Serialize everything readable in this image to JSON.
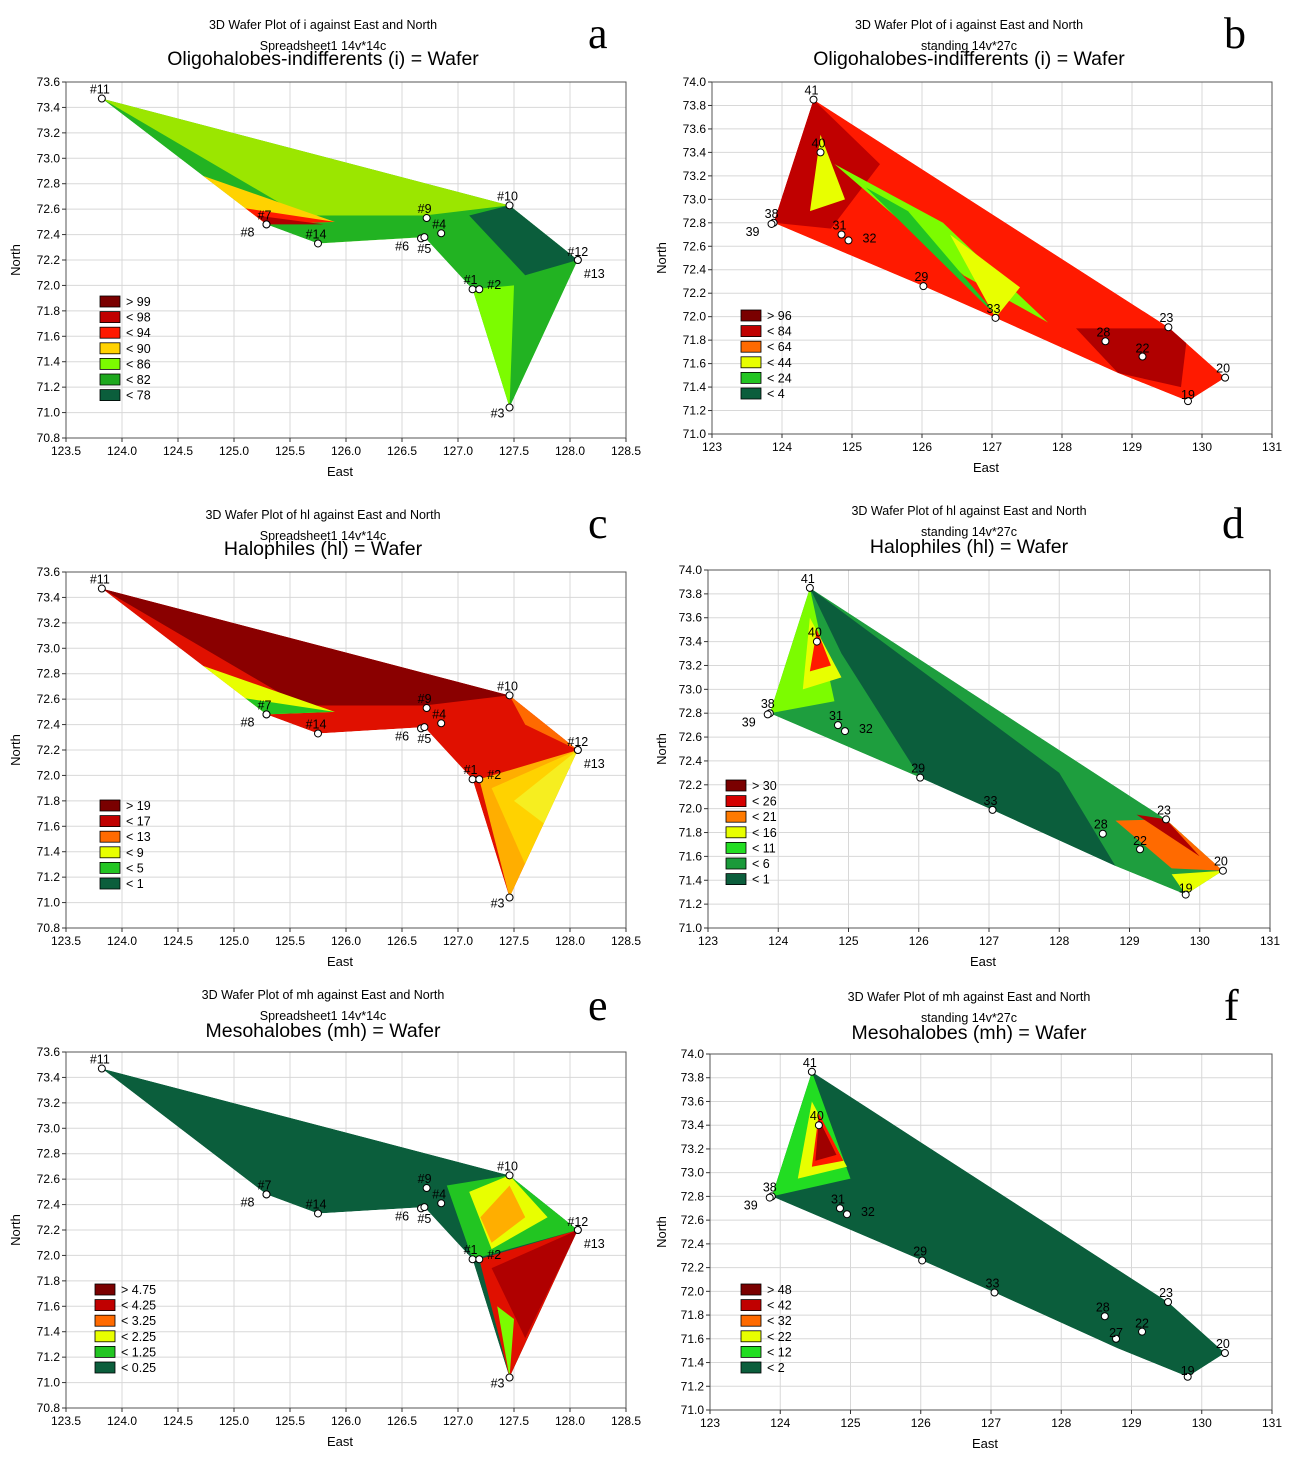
{
  "panels": [
    {
      "letter": "a",
      "sup1": "3D Wafer Plot of i against East and North",
      "sup2": "Spreadsheet1 14v*14c",
      "title": "Oligohalobes-indifferents (i) = Wafer",
      "xlabel": "East",
      "ylabel": "North",
      "xticks": [
        "123.5",
        "124.0",
        "124.5",
        "125.0",
        "125.5",
        "126.0",
        "126.5",
        "127.0",
        "127.5",
        "128.0",
        "128.5"
      ],
      "yticks": [
        "70.8",
        "71.0",
        "71.2",
        "71.4",
        "71.6",
        "71.8",
        "72.0",
        "72.2",
        "72.4",
        "72.6",
        "72.8",
        "73.0",
        "73.2",
        "73.4",
        "73.6"
      ],
      "legend": [
        ">&nbsp;99",
        "< 98",
        "< 94",
        "< 90",
        "< 86",
        "< 82",
        "< 78"
      ],
      "legend_text": [
        "> 99",
        "< 98",
        "< 94",
        "< 90",
        "< 86",
        "< 82",
        "< 78"
      ],
      "legend_colors": [
        "#7a0000",
        "#c00000",
        "#ff1a00",
        "#ffd200",
        "#7cfc00",
        "#1ea81e",
        "#0b5e3c"
      ],
      "points": [
        {
          "label": "#11",
          "x": 123.82,
          "y": 73.47
        },
        {
          "label": "#7",
          "x": 125.29,
          "y": 72.48
        },
        {
          "label": "#8",
          "x": 125.29,
          "y": 72.48
        },
        {
          "label": "#14",
          "x": 125.75,
          "y": 72.33
        },
        {
          "label": "#6",
          "x": 126.67,
          "y": 72.37
        },
        {
          "label": "#9",
          "x": 126.72,
          "y": 72.53
        },
        {
          "label": "#4",
          "x": 126.85,
          "y": 72.41
        },
        {
          "label": "#5",
          "x": 126.7,
          "y": 72.38
        },
        {
          "label": "#10",
          "x": 127.46,
          "y": 72.63
        },
        {
          "label": "#12",
          "x": 128.07,
          "y": 72.2
        },
        {
          "label": "#13",
          "x": 128.07,
          "y": 72.2
        },
        {
          "label": "#1",
          "x": 127.13,
          "y": 71.97
        },
        {
          "label": "#2",
          "x": 127.19,
          "y": 71.97
        },
        {
          "label": "#3",
          "x": 127.46,
          "y": 71.04
        }
      ]
    },
    {
      "letter": "b",
      "sup1": "3D Wafer Plot of i against East and North",
      "sup2": "standing 14v*27c",
      "title": "Oligohalobes-indifferents (i) = Wafer",
      "xlabel": "East",
      "ylabel": "North",
      "xticks": [
        "123",
        "124",
        "125",
        "126",
        "127",
        "128",
        "129",
        "130",
        "131"
      ],
      "yticks": [
        "71.0",
        "71.2",
        "71.4",
        "71.6",
        "71.8",
        "72.0",
        "72.2",
        "72.4",
        "72.6",
        "72.8",
        "73.0",
        "73.2",
        "73.4",
        "73.6",
        "73.8",
        "74.0"
      ],
      "legend_text": [
        "> 96",
        "< 84",
        "< 64",
        "< 44",
        "< 24",
        "< 4"
      ],
      "legend_colors": [
        "#7a0000",
        "#c00000",
        "#ff6a00",
        "#e8ff00",
        "#22c522",
        "#0b5e3c"
      ],
      "points": [
        {
          "label": "41",
          "x": 124.45,
          "y": 73.85
        },
        {
          "label": "40",
          "x": 124.55,
          "y": 73.4
        },
        {
          "label": "38",
          "x": 123.88,
          "y": 72.8
        },
        {
          "label": "39",
          "x": 123.85,
          "y": 72.79
        },
        {
          "label": "31",
          "x": 124.85,
          "y": 72.7
        },
        {
          "label": "32",
          "x": 124.95,
          "y": 72.65
        },
        {
          "label": "29",
          "x": 126.02,
          "y": 72.26
        },
        {
          "label": "33",
          "x": 127.05,
          "y": 71.99
        },
        {
          "label": "28",
          "x": 128.62,
          "y": 71.79
        },
        {
          "label": "22",
          "x": 129.15,
          "y": 71.66
        },
        {
          "label": "23",
          "x": 129.52,
          "y": 71.91
        },
        {
          "label": "20",
          "x": 130.33,
          "y": 71.48
        },
        {
          "label": "19",
          "x": 129.8,
          "y": 71.28
        }
      ]
    },
    {
      "letter": "c",
      "sup1": "3D Wafer Plot of hl against East and North",
      "sup2": "Spreadsheet1 14v*14c",
      "title": "Halophiles (hl) = Wafer",
      "xlabel": "East",
      "ylabel": "North",
      "xticks": [
        "123.5",
        "124.0",
        "124.5",
        "125.0",
        "125.5",
        "126.0",
        "126.5",
        "127.0",
        "127.5",
        "128.0",
        "128.5"
      ],
      "yticks": [
        "70.8",
        "71.0",
        "71.2",
        "71.4",
        "71.6",
        "71.8",
        "72.0",
        "72.2",
        "72.4",
        "72.6",
        "72.8",
        "73.0",
        "73.2",
        "73.4",
        "73.6"
      ],
      "legend_text": [
        "> 19",
        "< 17",
        "< 13",
        "< 9",
        "< 5",
        "< 1"
      ],
      "legend_colors": [
        "#7a0000",
        "#c00000",
        "#ff6a00",
        "#e8ff00",
        "#22c522",
        "#0b5e3c"
      ],
      "points": [
        {
          "label": "#11",
          "x": 123.82,
          "y": 73.47
        },
        {
          "label": "#7",
          "x": 125.29,
          "y": 72.48
        },
        {
          "label": "#8",
          "x": 125.29,
          "y": 72.48
        },
        {
          "label": "#14",
          "x": 125.75,
          "y": 72.33
        },
        {
          "label": "#6",
          "x": 126.67,
          "y": 72.37
        },
        {
          "label": "#9",
          "x": 126.72,
          "y": 72.53
        },
        {
          "label": "#4",
          "x": 126.85,
          "y": 72.41
        },
        {
          "label": "#5",
          "x": 126.7,
          "y": 72.38
        },
        {
          "label": "#10",
          "x": 127.46,
          "y": 72.63
        },
        {
          "label": "#12",
          "x": 128.07,
          "y": 72.2
        },
        {
          "label": "#13",
          "x": 128.07,
          "y": 72.2
        },
        {
          "label": "#1",
          "x": 127.13,
          "y": 71.97
        },
        {
          "label": "#2",
          "x": 127.19,
          "y": 71.97
        },
        {
          "label": "#3",
          "x": 127.46,
          "y": 71.04
        }
      ]
    },
    {
      "letter": "d",
      "sup1": "3D Wafer Plot of hl against East and North",
      "sup2": "standing 14v*27c",
      "title": "Halophiles (hl) = Wafer",
      "xlabel": "East",
      "ylabel": "North",
      "xticks": [
        "123",
        "124",
        "125",
        "126",
        "127",
        "128",
        "129",
        "130",
        "131"
      ],
      "yticks": [
        "71.0",
        "71.2",
        "71.4",
        "71.6",
        "71.8",
        "72.0",
        "72.2",
        "72.4",
        "72.6",
        "72.8",
        "73.0",
        "73.2",
        "73.4",
        "73.6",
        "73.8",
        "74.0"
      ],
      "legend_text": [
        "> 30",
        "< 26",
        "< 21",
        "< 16",
        "< 11",
        "< 6",
        "< 1"
      ],
      "legend_colors": [
        "#7a0000",
        "#d40000",
        "#ff7a00",
        "#e8ff00",
        "#22dd22",
        "#1a9a3a",
        "#0b5e3c"
      ],
      "points": [
        {
          "label": "41",
          "x": 124.45,
          "y": 73.85
        },
        {
          "label": "40",
          "x": 124.55,
          "y": 73.4
        },
        {
          "label": "38",
          "x": 123.88,
          "y": 72.8
        },
        {
          "label": "39",
          "x": 123.85,
          "y": 72.79
        },
        {
          "label": "31",
          "x": 124.85,
          "y": 72.7
        },
        {
          "label": "32",
          "x": 124.95,
          "y": 72.65
        },
        {
          "label": "29",
          "x": 126.02,
          "y": 72.26
        },
        {
          "label": "33",
          "x": 127.05,
          "y": 71.99
        },
        {
          "label": "28",
          "x": 128.62,
          "y": 71.79
        },
        {
          "label": "22",
          "x": 129.15,
          "y": 71.66
        },
        {
          "label": "23",
          "x": 129.52,
          "y": 71.91
        },
        {
          "label": "20",
          "x": 130.33,
          "y": 71.48
        },
        {
          "label": "19",
          "x": 129.8,
          "y": 71.28
        }
      ]
    },
    {
      "letter": "e",
      "sup1": "3D Wafer Plot of mh against East and North",
      "sup2": "Spreadsheet1 14v*14c",
      "title": "Mesohalobes (mh) = Wafer",
      "xlabel": "East",
      "ylabel": "North",
      "xticks": [
        "123.5",
        "124.0",
        "124.5",
        "125.0",
        "125.5",
        "126.0",
        "126.5",
        "127.0",
        "127.5",
        "128.0",
        "128.5"
      ],
      "yticks": [
        "70.8",
        "71.0",
        "71.2",
        "71.4",
        "71.6",
        "71.8",
        "72.0",
        "72.2",
        "72.4",
        "72.6",
        "72.8",
        "73.0",
        "73.2",
        "73.4",
        "73.6"
      ],
      "legend_text": [
        "> 4.75",
        "< 4.25",
        "< 3.25",
        "< 2.25",
        "< 1.25",
        "< 0.25"
      ],
      "legend_colors": [
        "#7a0000",
        "#c00000",
        "#ff6a00",
        "#e8ff00",
        "#22c522",
        "#0b5e3c"
      ],
      "points": [
        {
          "label": "#11",
          "x": 123.82,
          "y": 73.47
        },
        {
          "label": "#7",
          "x": 125.29,
          "y": 72.48
        },
        {
          "label": "#8",
          "x": 125.29,
          "y": 72.48
        },
        {
          "label": "#14",
          "x": 125.75,
          "y": 72.33
        },
        {
          "label": "#6",
          "x": 126.67,
          "y": 72.37
        },
        {
          "label": "#9",
          "x": 126.72,
          "y": 72.53
        },
        {
          "label": "#4",
          "x": 126.85,
          "y": 72.41
        },
        {
          "label": "#5",
          "x": 126.7,
          "y": 72.38
        },
        {
          "label": "#10",
          "x": 127.46,
          "y": 72.63
        },
        {
          "label": "#12",
          "x": 128.07,
          "y": 72.2
        },
        {
          "label": "#13",
          "x": 128.07,
          "y": 72.2
        },
        {
          "label": "#1",
          "x": 127.13,
          "y": 71.97
        },
        {
          "label": "#2",
          "x": 127.19,
          "y": 71.97
        },
        {
          "label": "#3",
          "x": 127.46,
          "y": 71.04
        }
      ]
    },
    {
      "letter": "f",
      "sup1": "3D Wafer Plot of mh against East and North",
      "sup2": "standing 14v*27c",
      "title": "Mesohalobes (mh) = Wafer",
      "xlabel": "East",
      "ylabel": "North",
      "xticks": [
        "123",
        "124",
        "125",
        "126",
        "127",
        "128",
        "129",
        "130",
        "131"
      ],
      "yticks": [
        "71.0",
        "71.2",
        "71.4",
        "71.6",
        "71.8",
        "72.0",
        "72.2",
        "72.4",
        "72.6",
        "72.8",
        "73.0",
        "73.2",
        "73.4",
        "73.6",
        "73.8",
        "74.0"
      ],
      "legend_text": [
        "> 48",
        "< 42",
        "< 32",
        "< 22",
        "< 12",
        "< 2"
      ],
      "legend_colors": [
        "#7a0000",
        "#c00000",
        "#ff6a00",
        "#e8ff00",
        "#22dd22",
        "#0b5e3c"
      ],
      "points": [
        {
          "label": "41",
          "x": 124.45,
          "y": 73.85
        },
        {
          "label": "40",
          "x": 124.55,
          "y": 73.4
        },
        {
          "label": "38",
          "x": 123.88,
          "y": 72.8
        },
        {
          "label": "39",
          "x": 123.85,
          "y": 72.79
        },
        {
          "label": "31",
          "x": 124.85,
          "y": 72.7
        },
        {
          "label": "32",
          "x": 124.95,
          "y": 72.65
        },
        {
          "label": "29",
          "x": 126.02,
          "y": 72.26
        },
        {
          "label": "33",
          "x": 127.05,
          "y": 71.99
        },
        {
          "label": "28",
          "x": 128.62,
          "y": 71.79
        },
        {
          "label": "22",
          "x": 129.15,
          "y": 71.66
        },
        {
          "label": "27",
          "x": 128.78,
          "y": 71.6
        },
        {
          "label": "23",
          "x": 129.52,
          "y": 71.91
        },
        {
          "label": "20",
          "x": 130.33,
          "y": 71.48
        },
        {
          "label": "19",
          "x": 129.8,
          "y": 71.28
        }
      ]
    }
  ],
  "chart_data": [
    {
      "type": "heatmap",
      "title": "Oligohalobes-indifferents (i) = Wafer",
      "subtitle": "3D Wafer Plot of i against East and North / Spreadsheet1 14v*14c",
      "xlabel": "East",
      "ylabel": "North",
      "xlim": [
        123.5,
        128.5
      ],
      "ylim": [
        70.8,
        73.6
      ],
      "legend": [
        "> 99",
        "< 98",
        "< 94",
        "< 90",
        "< 86",
        "< 82",
        "< 78"
      ]
    },
    {
      "type": "heatmap",
      "title": "Oligohalobes-indifferents (i) = Wafer",
      "subtitle": "3D Wafer Plot of i against East and North / standing 14v*27c",
      "xlabel": "East",
      "ylabel": "North",
      "xlim": [
        123,
        131
      ],
      "ylim": [
        71.0,
        74.0
      ],
      "legend": [
        "> 96",
        "< 84",
        "< 64",
        "< 44",
        "< 24",
        "< 4"
      ]
    },
    {
      "type": "heatmap",
      "title": "Halophiles (hl) = Wafer",
      "subtitle": "3D Wafer Plot of hl against East and North / Spreadsheet1 14v*14c",
      "xlabel": "East",
      "ylabel": "North",
      "xlim": [
        123.5,
        128.5
      ],
      "ylim": [
        70.8,
        73.6
      ],
      "legend": [
        "> 19",
        "< 17",
        "< 13",
        "< 9",
        "< 5",
        "< 1"
      ]
    },
    {
      "type": "heatmap",
      "title": "Halophiles (hl) = Wafer",
      "subtitle": "3D Wafer Plot of hl against East and North / standing 14v*27c",
      "xlabel": "East",
      "ylabel": "North",
      "xlim": [
        123,
        131
      ],
      "ylim": [
        71.0,
        74.0
      ],
      "legend": [
        "> 30",
        "< 26",
        "< 21",
        "< 16",
        "< 11",
        "< 6",
        "< 1"
      ]
    },
    {
      "type": "heatmap",
      "title": "Mesohalobes (mh) = Wafer",
      "subtitle": "3D Wafer Plot of mh against East and North / Spreadsheet1 14v*14c",
      "xlabel": "East",
      "ylabel": "North",
      "xlim": [
        123.5,
        128.5
      ],
      "ylim": [
        70.8,
        73.6
      ],
      "legend": [
        "> 4.75",
        "< 4.25",
        "< 3.25",
        "< 2.25",
        "< 1.25",
        "< 0.25"
      ]
    },
    {
      "type": "heatmap",
      "title": "Mesohalobes (mh) = Wafer",
      "subtitle": "3D Wafer Plot of mh against East and North / standing 14v*27c",
      "xlabel": "East",
      "ylabel": "North",
      "xlim": [
        123,
        131
      ],
      "ylim": [
        71.0,
        74.0
      ],
      "legend": [
        "> 48",
        "< 42",
        "< 32",
        "< 22",
        "< 12",
        "< 2"
      ]
    }
  ]
}
